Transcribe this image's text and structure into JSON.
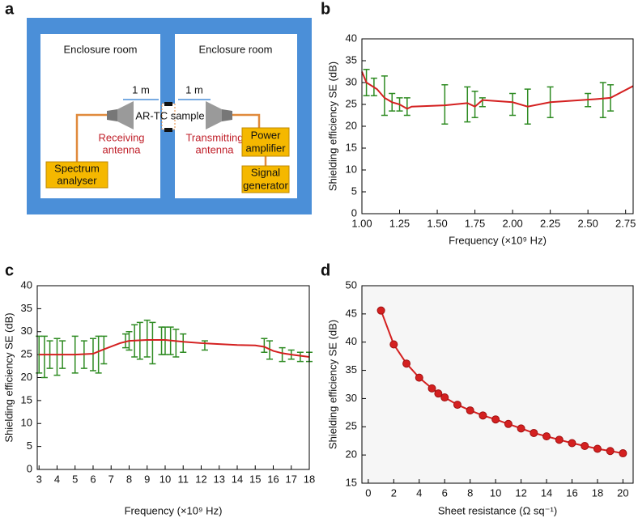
{
  "panels": [
    "a",
    "b",
    "c",
    "d"
  ],
  "diagram": {
    "rooms": [
      "Enclosure room",
      "Enclosure room"
    ],
    "distances": [
      "1 m",
      "1 m"
    ],
    "sample": "AR-TC sample",
    "receiving": [
      "Receiving",
      "antenna"
    ],
    "transmitting": [
      "Transmitting",
      "antenna"
    ],
    "spectrum": [
      "Spectrum",
      "analyser"
    ],
    "power": [
      "Power",
      "amplifier"
    ],
    "signal": [
      "Signal",
      "generator"
    ]
  },
  "chart_data": [
    {
      "type": "line",
      "xlabel": "Frequency (×10⁹ Hz)",
      "ylabel": "Shielding efficiency SE (dB)",
      "xlim": [
        1.0,
        2.8
      ],
      "ylim": [
        0,
        40
      ],
      "xticks": [
        {
          "value": 1.0,
          "label": "1.00"
        },
        {
          "value": 1.25,
          "label": "1.25"
        },
        {
          "value": 1.5,
          "label": "1.50"
        },
        {
          "value": 1.75,
          "label": "1.75"
        },
        {
          "value": 2.0,
          "label": "2.00"
        },
        {
          "value": 2.25,
          "label": "2.25"
        },
        {
          "value": 2.5,
          "label": "2.50"
        },
        {
          "value": 2.75,
          "label": "2.75"
        }
      ],
      "yticks": [
        0,
        5,
        10,
        15,
        20,
        25,
        30,
        35,
        40
      ],
      "series": [
        {
          "color": "#2e8b22",
          "x": [
            1.03,
            1.08,
            1.15,
            1.2,
            1.25,
            1.3,
            1.55,
            1.7,
            1.75,
            1.8,
            2.0,
            2.1,
            2.25,
            2.5,
            2.6,
            2.65
          ],
          "values": [
            30,
            29,
            27,
            25.5,
            25,
            24.5,
            25,
            25,
            25,
            25.5,
            25,
            24.5,
            25.5,
            26,
            26,
            26.5
          ],
          "errors": [
            3,
            2,
            4.5,
            2,
            1.5,
            2,
            4.5,
            4,
            3,
            1,
            2.5,
            4,
            3.5,
            1.5,
            4,
            3
          ]
        },
        {
          "color": "#d42020",
          "x": [
            1.0,
            1.03,
            1.1,
            1.15,
            1.2,
            1.25,
            1.3,
            1.33,
            1.55,
            1.7,
            1.75,
            1.8,
            2.0,
            2.1,
            2.25,
            2.55,
            2.65,
            2.8
          ],
          "values": [
            32.5,
            30,
            28.5,
            26.5,
            25.5,
            25,
            24,
            24.5,
            24.8,
            25.3,
            24.5,
            26,
            25.5,
            24.5,
            25.5,
            26.2,
            26.5,
            29.2
          ]
        }
      ]
    },
    {
      "type": "line",
      "xlabel": "Frequency (×10⁹ Hz)",
      "ylabel": "Shielding efficiency SE (dB)",
      "xlim": [
        2.9,
        18
      ],
      "ylim": [
        0,
        40
      ],
      "xticks": [
        3,
        4,
        5,
        6,
        7,
        8,
        9,
        10,
        11,
        12,
        13,
        14,
        15,
        16,
        17,
        18
      ],
      "yticks": [
        0,
        5,
        10,
        15,
        20,
        25,
        30,
        35,
        40
      ],
      "series": [
        {
          "color": "#2e8b22",
          "x": [
            3.0,
            3.3,
            3.6,
            4.0,
            4.3,
            5.0,
            5.5,
            6.0,
            6.3,
            6.6,
            7.8,
            8.0,
            8.3,
            8.6,
            9.0,
            9.3,
            9.8,
            10.0,
            10.3,
            10.6,
            11.0,
            12.2,
            15.5,
            15.8,
            16.5,
            17.0,
            17.5,
            18.0
          ],
          "values": [
            25,
            24.5,
            25,
            24.5,
            25,
            25,
            25,
            25,
            25,
            26,
            28,
            28,
            28,
            28,
            28.5,
            27.5,
            28,
            28,
            28,
            27.5,
            27.5,
            27,
            27,
            26,
            25,
            25,
            24.5,
            24.5
          ],
          "errors": [
            4,
            4.5,
            3,
            4,
            3,
            4,
            3,
            3.5,
            4,
            3,
            1.5,
            2,
            3.5,
            4,
            4,
            4.5,
            3,
            3,
            3,
            3,
            2,
            1,
            1.5,
            2,
            1.5,
            1,
            1,
            1
          ]
        },
        {
          "color": "#d42020",
          "x": [
            3,
            4,
            5,
            6,
            6.5,
            7.5,
            8,
            9,
            10,
            11,
            12,
            13,
            14,
            15,
            15.5,
            16,
            16.5,
            17,
            18
          ],
          "values": [
            25,
            25,
            25,
            25.2,
            26,
            27.5,
            28,
            28.2,
            28.2,
            27.8,
            27.5,
            27.3,
            27.1,
            27,
            26.7,
            25.8,
            25.3,
            25,
            24.5
          ]
        }
      ]
    },
    {
      "type": "line",
      "xlabel": "Sheet resistance (Ω sq⁻¹)",
      "ylabel": "Shielding efficiency SE (dB)",
      "xlim": [
        -0.5,
        20.8
      ],
      "ylim": [
        15,
        50
      ],
      "xticks": [
        0,
        2,
        4,
        6,
        8,
        10,
        12,
        14,
        16,
        18,
        20
      ],
      "yticks": [
        15,
        20,
        25,
        30,
        35,
        40,
        45,
        50
      ],
      "markers": true,
      "series": [
        {
          "color": "#d42020",
          "x": [
            1,
            2,
            3,
            4,
            5,
            5.5,
            6,
            7,
            8,
            9,
            10,
            11,
            12,
            13,
            14,
            15,
            16,
            17,
            18,
            19,
            20
          ],
          "values": [
            45.6,
            39.6,
            36.2,
            33.7,
            31.8,
            30.9,
            30.2,
            28.9,
            27.9,
            27.0,
            26.3,
            25.5,
            24.7,
            23.9,
            23.3,
            22.7,
            22.1,
            21.6,
            21.1,
            20.7,
            20.3
          ]
        }
      ]
    }
  ]
}
